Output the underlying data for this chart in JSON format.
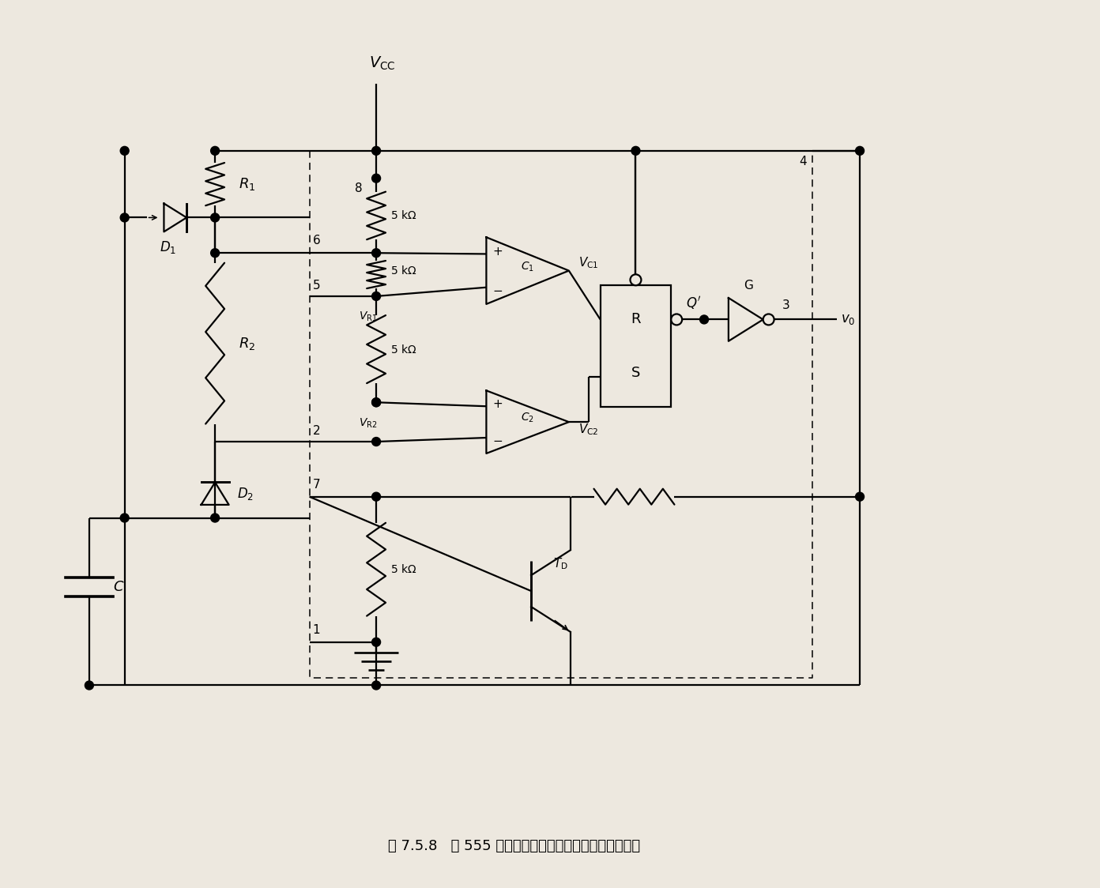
{
  "title": "图 7.5.8   用 555 定时器组成的占空比可调多谐振荡电路",
  "bg": "#ede8df",
  "lw": 1.6,
  "figsize": [
    13.92,
    11.24
  ],
  "dpi": 100,
  "xlim": [
    0,
    13.92
  ],
  "ylim": [
    0,
    11.24
  ]
}
